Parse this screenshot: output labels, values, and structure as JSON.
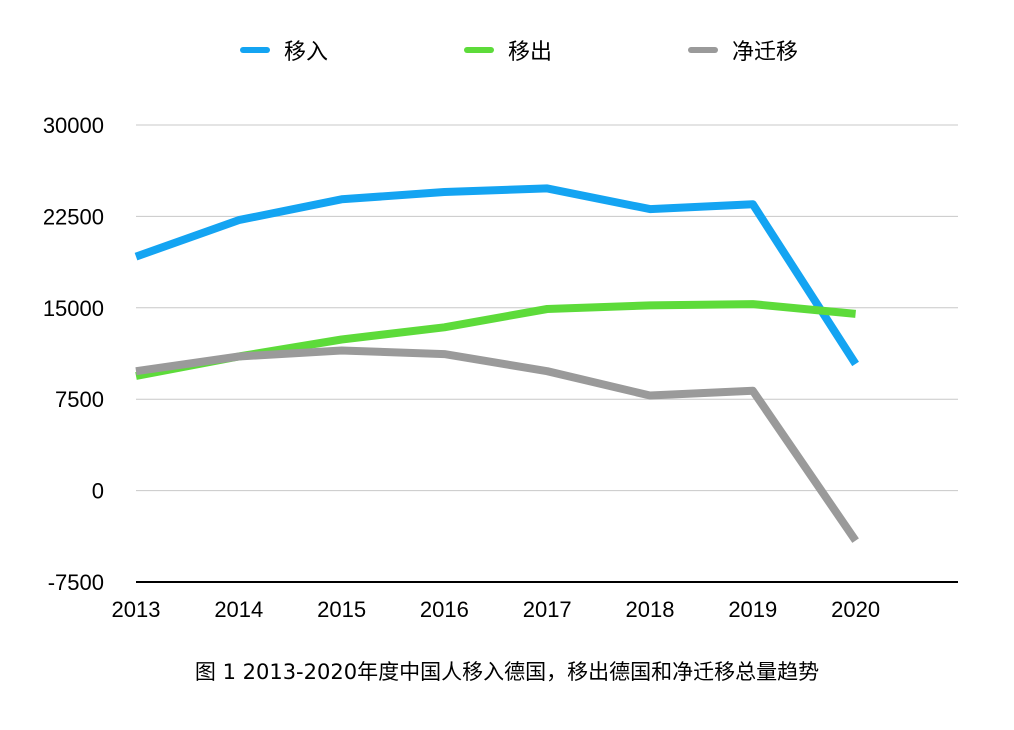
{
  "chart_data": {
    "type": "line",
    "categories": [
      "2013",
      "2014",
      "2015",
      "2016",
      "2017",
      "2018",
      "2019",
      "2020"
    ],
    "series": [
      {
        "name": "移入",
        "color": "#14A4F2",
        "values": [
          19200,
          22200,
          23900,
          24500,
          24800,
          23100,
          23500,
          10400
        ]
      },
      {
        "name": "移出",
        "color": "#5DDB3A",
        "values": [
          9400,
          11000,
          12400,
          13400,
          14900,
          15200,
          15300,
          14500
        ]
      },
      {
        "name": "净迁移",
        "color": "#9A9A9A",
        "values": [
          9800,
          11000,
          11500,
          11200,
          9800,
          7800,
          8200,
          -4100
        ]
      }
    ],
    "y_ticks": [
      "30000",
      "22500",
      "15000",
      "7500",
      "0",
      "-7500"
    ],
    "ylim": [
      -7500,
      30000
    ],
    "grid": true,
    "legend_position": "top",
    "caption": "图 1 2013-2020年度中国人移入德国，移出德国和净迁移总量趋势"
  }
}
